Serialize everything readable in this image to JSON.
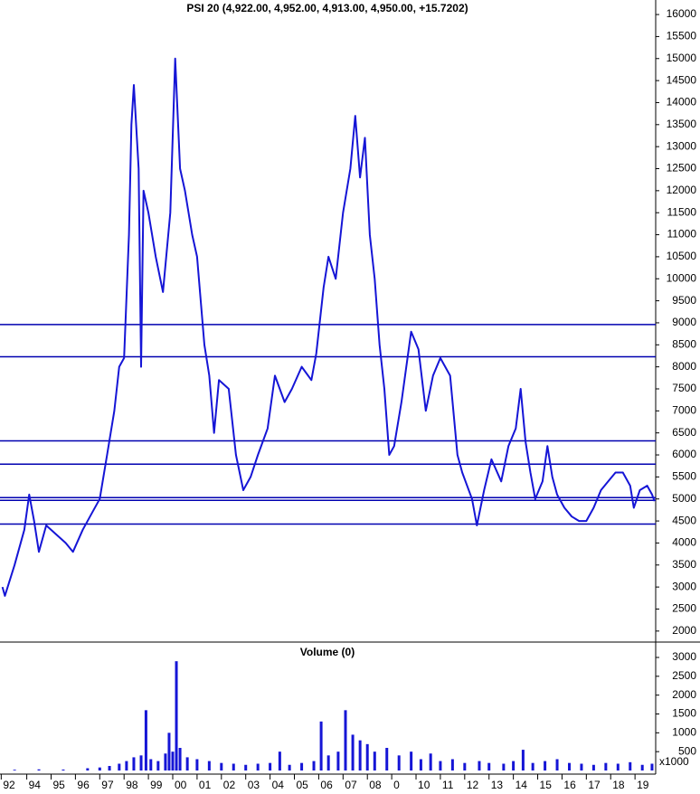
{
  "chart_data": [
    {
      "type": "line",
      "title": "PSI 20 (4,922.00, 4,952.00, 4,913.00, 4,950.00, +15.7202)",
      "x": [
        1993.0,
        1993.1,
        1993.5,
        1993.9,
        1994.1,
        1994.3,
        1994.5,
        1994.8,
        1995.2,
        1995.6,
        1995.9,
        1996.3,
        1996.7,
        1997.0,
        1997.3,
        1997.6,
        1997.8,
        1998.0,
        1998.2,
        1998.3,
        1998.4,
        1998.6,
        1998.7,
        1998.8,
        1999.0,
        1999.3,
        1999.6,
        1999.9,
        2000.1,
        2000.3,
        2000.5,
        2000.8,
        2001.0,
        2001.3,
        2001.5,
        2001.7,
        2001.9,
        2002.3,
        2002.6,
        2002.9,
        2003.2,
        2003.5,
        2003.9,
        2004.2,
        2004.6,
        2004.9,
        2005.3,
        2005.7,
        2005.9,
        2006.2,
        2006.4,
        2006.7,
        2007.0,
        2007.3,
        2007.5,
        2007.7,
        2007.9,
        2008.1,
        2008.3,
        2008.5,
        2008.7,
        2008.9,
        2009.1,
        2009.4,
        2009.8,
        2010.1,
        2010.4,
        2010.7,
        2011.0,
        2011.4,
        2011.7,
        2011.9,
        2012.3,
        2012.5,
        2012.8,
        2013.1,
        2013.5,
        2013.8,
        2014.1,
        2014.3,
        2014.5,
        2014.7,
        2014.9,
        2015.2,
        2015.4,
        2015.6,
        2015.8,
        2016.1,
        2016.4,
        2016.7,
        2017.0,
        2017.3,
        2017.6,
        2017.9,
        2018.2,
        2018.5,
        2018.8,
        2018.95,
        2019.2,
        2019.5,
        2019.7,
        2019.8
      ],
      "values": [
        3000,
        2800,
        3500,
        4300,
        5100,
        4500,
        3800,
        4400,
        4200,
        4000,
        3800,
        4300,
        4700,
        5000,
        6000,
        7000,
        8000,
        8200,
        11000,
        13500,
        14400,
        12500,
        8000,
        12000,
        11500,
        10500,
        9700,
        11500,
        15000,
        12500,
        12000,
        11000,
        10500,
        8500,
        7800,
        6500,
        7700,
        7500,
        6000,
        5200,
        5500,
        6000,
        6600,
        7800,
        7200,
        7500,
        8000,
        7700,
        8300,
        9800,
        10500,
        10000,
        11500,
        12500,
        13700,
        12300,
        13200,
        11000,
        10000,
        8500,
        7500,
        6000,
        6200,
        7200,
        8800,
        8400,
        7000,
        7800,
        8200,
        7800,
        6000,
        5600,
        5000,
        4400,
        5200,
        5900,
        5400,
        6200,
        6600,
        7500,
        6300,
        5600,
        5000,
        5400,
        6200,
        5500,
        5100,
        4800,
        4600,
        4500,
        4500,
        4800,
        5200,
        5400,
        5600,
        5600,
        5300,
        4800,
        5200,
        5300,
        5100,
        4950
      ],
      "color": "#1515d6",
      "hlines": [
        8960,
        8230,
        6320,
        5790,
        5030,
        4970,
        4430
      ],
      "hline_color": "#0000b0",
      "xlim": [
        1992.9,
        2019.85
      ],
      "ylim": [
        1750,
        16330
      ],
      "yticks": [
        2000,
        2500,
        3000,
        3500,
        4000,
        4500,
        5000,
        5500,
        6000,
        6500,
        7000,
        7500,
        8000,
        8500,
        9000,
        9500,
        10000,
        10500,
        11000,
        11500,
        12000,
        12500,
        13000,
        13500,
        14000,
        14500,
        15000,
        15500,
        16000
      ]
    },
    {
      "type": "bar",
      "title": "Volume (0)",
      "unit_label": "x1000",
      "x": [
        1993.5,
        1994.5,
        1995.5,
        1996.5,
        1997.0,
        1997.4,
        1997.8,
        1998.1,
        1998.4,
        1998.7,
        1998.9,
        1999.1,
        1999.4,
        1999.7,
        1999.85,
        2000.0,
        2000.15,
        2000.3,
        2000.6,
        2001.0,
        2001.5,
        2002.0,
        2002.5,
        2003.0,
        2003.5,
        2004.0,
        2004.4,
        2004.8,
        2005.3,
        2005.8,
        2006.1,
        2006.4,
        2006.8,
        2007.1,
        2007.4,
        2007.7,
        2008.0,
        2008.3,
        2008.8,
        2009.3,
        2009.8,
        2010.2,
        2010.6,
        2011.0,
        2011.5,
        2012.0,
        2012.6,
        2013.0,
        2013.6,
        2014.0,
        2014.4,
        2014.8,
        2015.3,
        2015.8,
        2016.3,
        2016.8,
        2017.3,
        2017.8,
        2018.3,
        2018.8,
        2019.3,
        2019.7
      ],
      "values": [
        20,
        30,
        25,
        60,
        80,
        120,
        180,
        250,
        350,
        400,
        1600,
        300,
        250,
        450,
        1000,
        500,
        2900,
        600,
        350,
        300,
        250,
        200,
        180,
        150,
        180,
        200,
        500,
        150,
        200,
        250,
        1300,
        400,
        500,
        1600,
        950,
        800,
        700,
        500,
        600,
        400,
        500,
        300,
        450,
        250,
        300,
        200,
        250,
        200,
        180,
        250,
        550,
        200,
        250,
        300,
        200,
        180,
        150,
        200,
        180,
        220,
        150,
        180
      ],
      "color": "#1515d6",
      "xlim": [
        1992.9,
        2019.85
      ],
      "ylim": [
        0,
        3360
      ],
      "yticks": [
        500,
        1000,
        1500,
        2000,
        2500,
        3000
      ],
      "xticks": [
        {
          "value": 1992.95,
          "label": "92"
        },
        {
          "value": 1994,
          "label": "94"
        },
        {
          "value": 1995,
          "label": "95"
        },
        {
          "value": 1996,
          "label": "96"
        },
        {
          "value": 1997,
          "label": "97"
        },
        {
          "value": 1998,
          "label": "98"
        },
        {
          "value": 1999,
          "label": "99"
        },
        {
          "value": 2000,
          "label": "00"
        },
        {
          "value": 2001,
          "label": "01"
        },
        {
          "value": 2002,
          "label": "02"
        },
        {
          "value": 2003,
          "label": "03"
        },
        {
          "value": 2004,
          "label": "04"
        },
        {
          "value": 2005,
          "label": "05"
        },
        {
          "value": 2006,
          "label": "06"
        },
        {
          "value": 2007,
          "label": "07"
        },
        {
          "value": 2008,
          "label": "08"
        },
        {
          "value": 2009,
          "label": "0"
        },
        {
          "value": 2010,
          "label": "10"
        },
        {
          "value": 2011,
          "label": "11"
        },
        {
          "value": 2012,
          "label": "12"
        },
        {
          "value": 2013,
          "label": "13"
        },
        {
          "value": 2014,
          "label": "14"
        },
        {
          "value": 2015,
          "label": "15"
        },
        {
          "value": 2016,
          "label": "16"
        },
        {
          "value": 2017,
          "label": "17"
        },
        {
          "value": 2018,
          "label": "18"
        },
        {
          "value": 2019,
          "label": "19"
        }
      ]
    }
  ]
}
